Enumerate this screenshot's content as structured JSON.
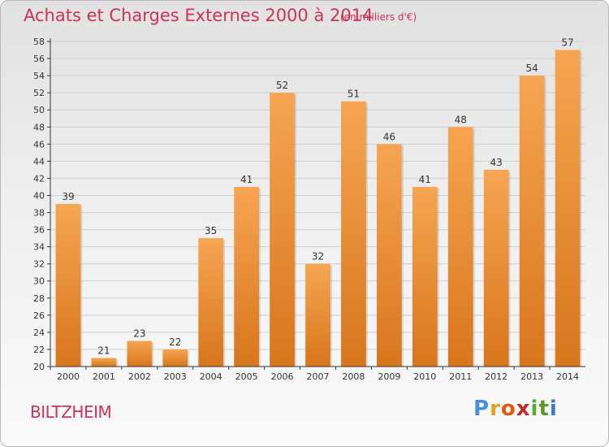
{
  "header": {
    "title": "Achats et Charges Externes 2000 à 2014",
    "subtitle": "(en milliers d'€)"
  },
  "footer": {
    "commune": "BILTZHEIM",
    "brand": [
      "P",
      "r",
      "o",
      "x",
      "i",
      "t",
      "i"
    ],
    "brand_colors": [
      "#4a90d9",
      "#e8a020",
      "#e05a10",
      "#c42a2a",
      "#55aa33",
      "#5a9a2a",
      "#3a7acc"
    ]
  },
  "colors": {
    "bar_light": "#f6a552",
    "bar_dark": "#d8761d",
    "axis": "#333333",
    "grid": "#cfcfcf",
    "accent": "#cc3355"
  },
  "chart_data": {
    "type": "bar",
    "categories": [
      "2000",
      "2001",
      "2002",
      "2003",
      "2004",
      "2005",
      "2006",
      "2007",
      "2008",
      "2009",
      "2010",
      "2011",
      "2012",
      "2013",
      "2014"
    ],
    "values": [
      39,
      21,
      23,
      22,
      35,
      41,
      52,
      32,
      51,
      46,
      41,
      48,
      43,
      54,
      57
    ],
    "ylim": [
      20,
      58
    ],
    "ytick_step": 2,
    "grid": "horizontal",
    "title": "Achats et Charges Externes 2000 à 2014",
    "xlabel": "",
    "ylabel": ""
  }
}
